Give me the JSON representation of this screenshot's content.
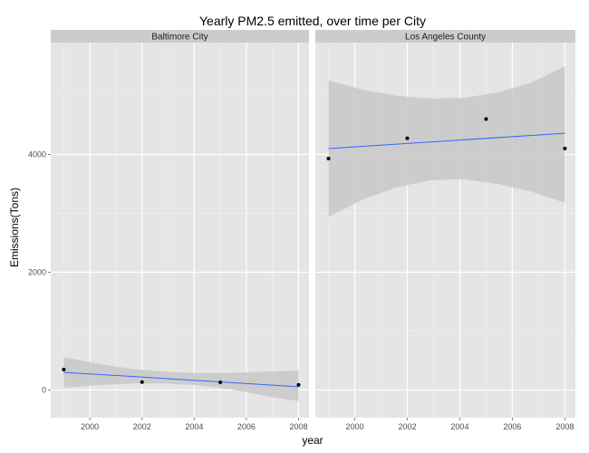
{
  "chart_data": {
    "type": "scatter",
    "title": "Yearly PM2.5 emitted, over time per City",
    "xlabel": "year",
    "ylabel": "Emissions(Tons)",
    "xlim": [
      1998.5,
      2008.4
    ],
    "ylim": [
      -470,
      5900
    ],
    "x_ticks": [
      2000,
      2002,
      2004,
      2006,
      2008
    ],
    "y_ticks": [
      0,
      2000,
      4000
    ],
    "grid": true,
    "smooth": "linear fit with confidence band",
    "colors": {
      "panel_bg": "#e5e5e5",
      "strip_bg": "#cccccc",
      "grid_major": "#ffffff",
      "grid_minor": "#f2f2f2",
      "point": "#000000",
      "fit_line": "#3366ff",
      "band": "#c8c8c8"
    },
    "panels": [
      {
        "label": "Baltimore City",
        "x": [
          1999,
          2002,
          2005,
          2008
        ],
        "y": [
          346.82,
          134.31,
          130.43,
          88.28
        ],
        "fit": [
          300,
          55
        ],
        "band": {
          "lower": [
            40,
            80,
            110,
            110,
            80,
            10,
            -100,
            -190
          ],
          "upper": [
            560,
            450,
            360,
            310,
            290,
            290,
            310,
            330
          ]
        }
      },
      {
        "label": "Los Angeles County",
        "x": [
          1999,
          2002,
          2005,
          2008
        ],
        "y": [
          3931.12,
          4274.03,
          4601.41,
          4101.32
        ],
        "fit": [
          4100,
          4360
        ],
        "band": {
          "lower": [
            2940,
            3230,
            3440,
            3560,
            3580,
            3500,
            3370,
            3180
          ],
          "upper": [
            5260,
            5100,
            5000,
            4950,
            4960,
            5050,
            5220,
            5500
          ]
        }
      }
    ]
  }
}
